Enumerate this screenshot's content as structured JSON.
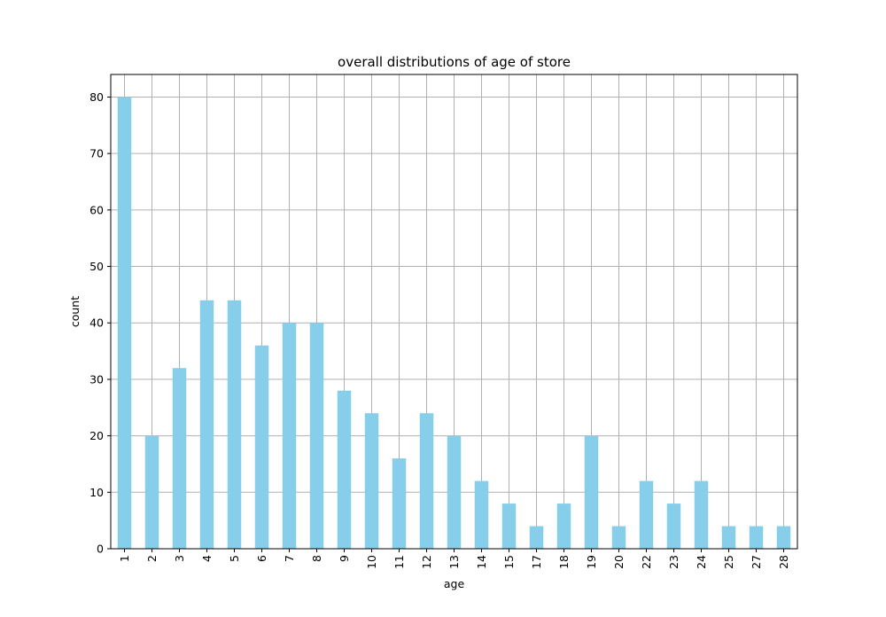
{
  "chart_data": {
    "type": "bar",
    "title": "overall distributions of age of store",
    "xlabel": "age",
    "ylabel": "count",
    "categories": [
      "1",
      "2",
      "3",
      "4",
      "5",
      "6",
      "7",
      "8",
      "9",
      "10",
      "11",
      "12",
      "13",
      "14",
      "15",
      "17",
      "18",
      "19",
      "20",
      "22",
      "23",
      "24",
      "25",
      "27",
      "28"
    ],
    "values": [
      80,
      20,
      32,
      44,
      44,
      36,
      40,
      40,
      28,
      24,
      16,
      24,
      20,
      12,
      8,
      4,
      8,
      20,
      4,
      12,
      8,
      12,
      4,
      4,
      4
    ],
    "ylim": [
      0,
      84
    ],
    "yticks": [
      0,
      10,
      20,
      30,
      40,
      50,
      60,
      70,
      80
    ],
    "grid": true,
    "bar_color": "#87CEEB",
    "grid_color": "#b0b0b0",
    "xtick_rotation": "vertical"
  }
}
